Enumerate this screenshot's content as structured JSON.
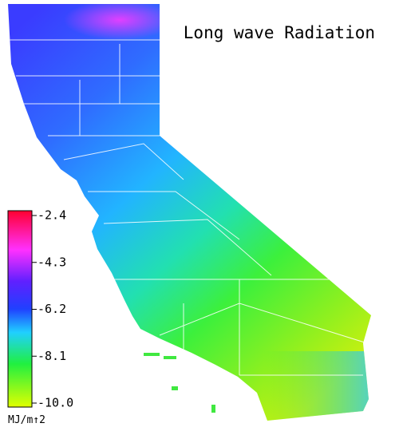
{
  "title": "Long wave Radiation",
  "legend": {
    "range": [
      -10,
      -2.4
    ],
    "ticks": [
      -2.4,
      -4.3,
      -6.2,
      -8.1,
      {
        "value": -10,
        "label": "-10.0"
      }
    ],
    "unit": "MJ/m↑2"
  }
}
